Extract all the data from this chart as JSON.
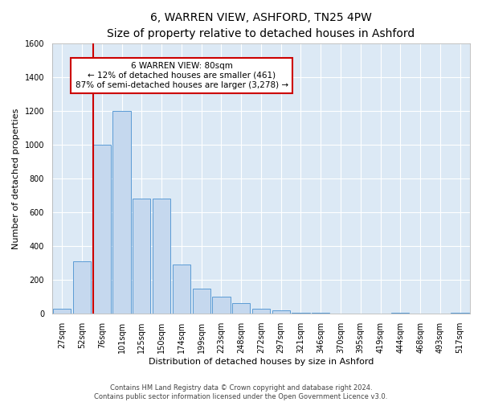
{
  "title": "6, WARREN VIEW, ASHFORD, TN25 4PW",
  "subtitle": "Size of property relative to detached houses in Ashford",
  "xlabel": "Distribution of detached houses by size in Ashford",
  "ylabel": "Number of detached properties",
  "footer_line1": "Contains HM Land Registry data © Crown copyright and database right 2024.",
  "footer_line2": "Contains public sector information licensed under the Open Government Licence v3.0.",
  "categories": [
    "27sqm",
    "52sqm",
    "76sqm",
    "101sqm",
    "125sqm",
    "150sqm",
    "174sqm",
    "199sqm",
    "223sqm",
    "248sqm",
    "272sqm",
    "297sqm",
    "321sqm",
    "346sqm",
    "370sqm",
    "395sqm",
    "419sqm",
    "444sqm",
    "468sqm",
    "493sqm",
    "517sqm"
  ],
  "values": [
    30,
    310,
    1000,
    1200,
    680,
    680,
    290,
    150,
    100,
    65,
    30,
    20,
    5,
    5,
    0,
    0,
    0,
    5,
    0,
    0,
    5
  ],
  "bar_color": "#c5d8ee",
  "bar_edge_color": "#5b9bd5",
  "red_line_color": "#cc0000",
  "red_line_x": 2.0,
  "annotation_text": "6 WARREN VIEW: 80sqm\n← 12% of detached houses are smaller (461)\n87% of semi-detached houses are larger (3,278) →",
  "annotation_box_facecolor": "#ffffff",
  "annotation_box_edgecolor": "#cc0000",
  "ylim": [
    0,
    1600
  ],
  "yticks": [
    0,
    200,
    400,
    600,
    800,
    1000,
    1200,
    1400,
    1600
  ],
  "plot_bg_color": "#dce9f5",
  "fig_bg_color": "#ffffff",
  "title_fontsize": 10,
  "ylabel_fontsize": 8,
  "xlabel_fontsize": 8,
  "tick_fontsize": 7,
  "annot_fontsize": 7.5,
  "footer_fontsize": 6
}
